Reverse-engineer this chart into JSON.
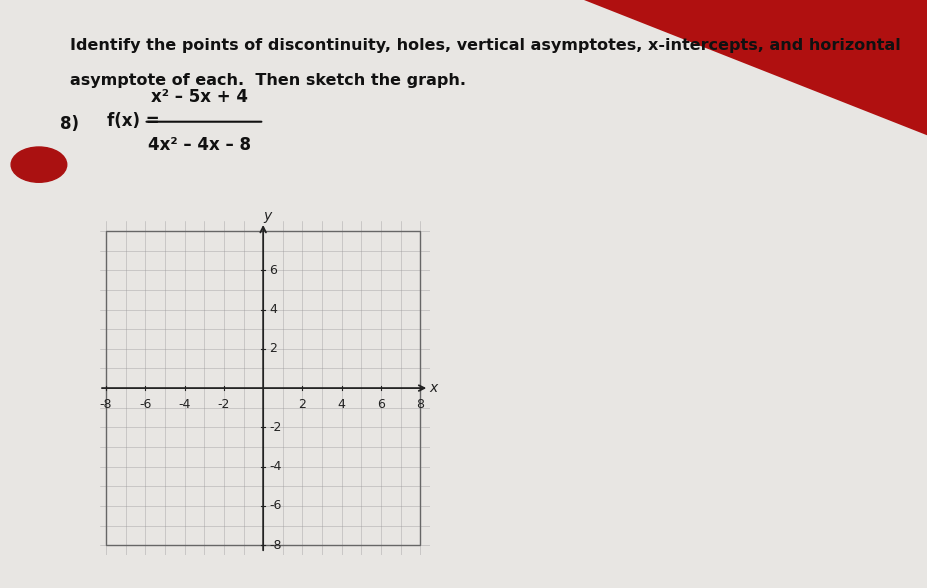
{
  "title_line1": "Identify the points of discontinuity, holes, vertical asymptotes, x-intercepts, and horizontal",
  "title_line2": "asymptote of each.  Then sketch the graph.",
  "problem_number": "8)",
  "formula_label": "f(x) = ",
  "numerator": "x² – 5x + 4",
  "denominator": "4x² – 4x – 8",
  "bg_paper": "#e8e6e3",
  "bg_red": "#b01010",
  "grid_color": "#999999",
  "axis_color": "#222222",
  "text_color": "#111111",
  "xmin": -8,
  "xmax": 8,
  "ymin": -8,
  "ymax": 8,
  "xticks": [
    -8,
    -6,
    -4,
    -2,
    2,
    4,
    6,
    8
  ],
  "yticks": [
    6,
    4,
    2,
    -2,
    -4,
    -6,
    -8
  ],
  "red_dot_color": "#aa1111",
  "figure_width": 9.27,
  "figure_height": 5.88,
  "font_size_title": 11.5,
  "font_size_problem": 12,
  "font_size_formula": 12,
  "font_size_ticks": 9
}
